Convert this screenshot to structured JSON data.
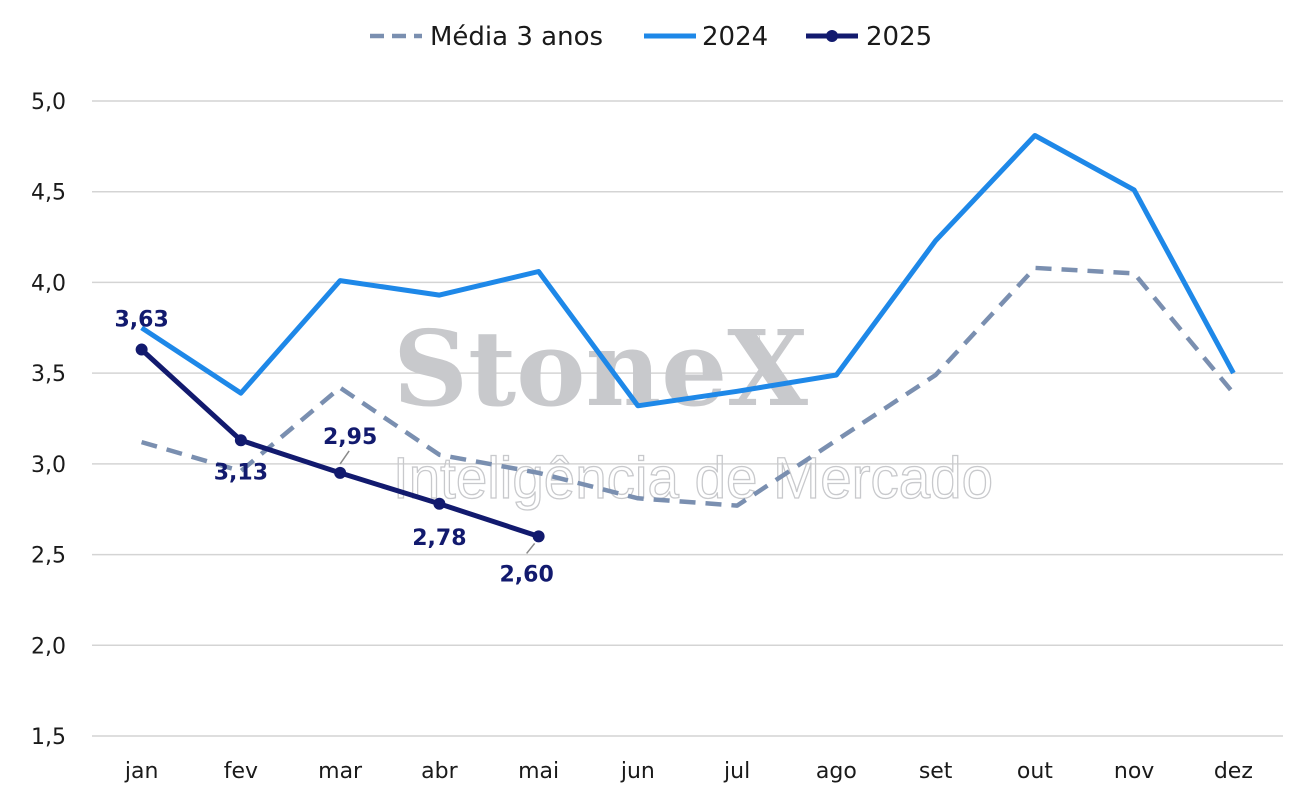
{
  "chart_data": {
    "type": "line",
    "categories": [
      "jan",
      "fev",
      "mar",
      "abr",
      "mai",
      "jun",
      "jul",
      "ago",
      "set",
      "out",
      "nov",
      "dez"
    ],
    "ylim": [
      1.5,
      5.0
    ],
    "yticks": [
      1.5,
      2.0,
      2.5,
      3.0,
      3.5,
      4.0,
      4.5,
      5.0
    ],
    "grid": true,
    "legend_position": "top-center",
    "series": [
      {
        "name": "Média 3 anos",
        "color": "#7a8fb0",
        "style": "dashed",
        "values": [
          3.12,
          2.96,
          3.42,
          3.05,
          2.95,
          2.81,
          2.77,
          3.13,
          3.49,
          4.08,
          4.05,
          3.39
        ]
      },
      {
        "name": "2024",
        "color": "#1e88e8",
        "style": "solid",
        "values": [
          3.75,
          3.39,
          4.01,
          3.93,
          4.06,
          3.32,
          3.4,
          3.49,
          4.23,
          4.81,
          4.51,
          3.5
        ]
      },
      {
        "name": "2025",
        "color": "#121a6e",
        "style": "solid-markers",
        "values": [
          3.63,
          3.13,
          2.95,
          2.78,
          2.6,
          null,
          null,
          null,
          null,
          null,
          null,
          null
        ],
        "labels": [
          "3,63",
          "3,13",
          "2,95",
          "2,78",
          "2,60"
        ]
      }
    ],
    "watermark": {
      "logo": "StoneX",
      "registered": "®",
      "subtitle": "Inteligência de Mercado"
    }
  }
}
